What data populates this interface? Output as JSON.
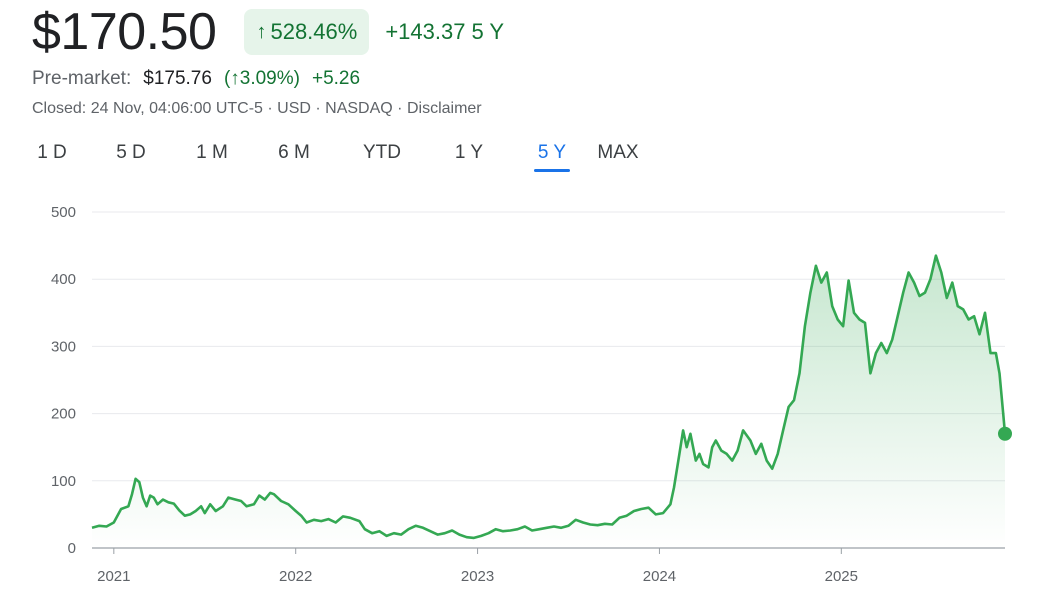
{
  "quote": {
    "price": "$170.50",
    "change_pct": "528.46%",
    "change_abs": "+143.37",
    "period": "5 Y",
    "premarket_label": "Pre-market:",
    "premarket_price": "$175.76",
    "premarket_pct": "(↑3.09%)",
    "premarket_abs": "+5.26",
    "closed": "Closed: 24 Nov, 04:06:00 UTC-5",
    "currency": "USD",
    "exchange": "NASDAQ",
    "disclaimer": "Disclaimer"
  },
  "tabs": [
    {
      "label": "1 D"
    },
    {
      "label": "5 D"
    },
    {
      "label": "1 M"
    },
    {
      "label": "6 M"
    },
    {
      "label": "YTD"
    },
    {
      "label": "1 Y"
    },
    {
      "label": "5 Y",
      "active": true
    },
    {
      "label": "MAX"
    }
  ],
  "colors": {
    "line": "#34a853",
    "positive": "#137333",
    "pill_bg": "#e6f4ea",
    "active_tab": "#1a73e8",
    "grid": "#e8eaed"
  },
  "chart_data": {
    "type": "area",
    "ylim": [
      0,
      500
    ],
    "yticks": [
      0,
      100,
      200,
      300,
      400,
      500
    ],
    "xticks": [
      "2021",
      "2022",
      "2023",
      "2024",
      "2025"
    ],
    "xlim": [
      2020.88,
      2025.9
    ],
    "grid": true,
    "series": [
      {
        "values": [
          [
            2020.88,
            30
          ],
          [
            2020.92,
            33
          ],
          [
            2020.96,
            32
          ],
          [
            2021.0,
            38
          ],
          [
            2021.04,
            58
          ],
          [
            2021.08,
            62
          ],
          [
            2021.1,
            80
          ],
          [
            2021.12,
            103
          ],
          [
            2021.14,
            98
          ],
          [
            2021.16,
            75
          ],
          [
            2021.18,
            62
          ],
          [
            2021.2,
            78
          ],
          [
            2021.22,
            75
          ],
          [
            2021.24,
            65
          ],
          [
            2021.27,
            72
          ],
          [
            2021.3,
            68
          ],
          [
            2021.33,
            66
          ],
          [
            2021.36,
            56
          ],
          [
            2021.39,
            48
          ],
          [
            2021.42,
            50
          ],
          [
            2021.45,
            55
          ],
          [
            2021.48,
            62
          ],
          [
            2021.5,
            52
          ],
          [
            2021.53,
            65
          ],
          [
            2021.56,
            55
          ],
          [
            2021.6,
            62
          ],
          [
            2021.63,
            75
          ],
          [
            2021.67,
            72
          ],
          [
            2021.7,
            70
          ],
          [
            2021.73,
            62
          ],
          [
            2021.77,
            65
          ],
          [
            2021.8,
            78
          ],
          [
            2021.83,
            72
          ],
          [
            2021.86,
            82
          ],
          [
            2021.88,
            80
          ],
          [
            2021.92,
            70
          ],
          [
            2021.96,
            65
          ],
          [
            2022.0,
            55
          ],
          [
            2022.03,
            48
          ],
          [
            2022.06,
            38
          ],
          [
            2022.1,
            42
          ],
          [
            2022.14,
            40
          ],
          [
            2022.18,
            43
          ],
          [
            2022.22,
            38
          ],
          [
            2022.26,
            47
          ],
          [
            2022.3,
            45
          ],
          [
            2022.35,
            40
          ],
          [
            2022.38,
            28
          ],
          [
            2022.42,
            22
          ],
          [
            2022.46,
            25
          ],
          [
            2022.5,
            18
          ],
          [
            2022.54,
            22
          ],
          [
            2022.58,
            20
          ],
          [
            2022.62,
            28
          ],
          [
            2022.66,
            33
          ],
          [
            2022.7,
            30
          ],
          [
            2022.74,
            25
          ],
          [
            2022.78,
            20
          ],
          [
            2022.82,
            22
          ],
          [
            2022.86,
            26
          ],
          [
            2022.9,
            20
          ],
          [
            2022.94,
            16
          ],
          [
            2022.98,
            15
          ],
          [
            2023.02,
            18
          ],
          [
            2023.06,
            22
          ],
          [
            2023.1,
            28
          ],
          [
            2023.14,
            25
          ],
          [
            2023.18,
            26
          ],
          [
            2023.22,
            28
          ],
          [
            2023.26,
            32
          ],
          [
            2023.3,
            26
          ],
          [
            2023.34,
            28
          ],
          [
            2023.38,
            30
          ],
          [
            2023.42,
            32
          ],
          [
            2023.46,
            30
          ],
          [
            2023.5,
            33
          ],
          [
            2023.54,
            42
          ],
          [
            2023.58,
            38
          ],
          [
            2023.62,
            35
          ],
          [
            2023.66,
            34
          ],
          [
            2023.7,
            36
          ],
          [
            2023.74,
            35
          ],
          [
            2023.78,
            45
          ],
          [
            2023.82,
            48
          ],
          [
            2023.86,
            55
          ],
          [
            2023.9,
            58
          ],
          [
            2023.94,
            60
          ],
          [
            2023.98,
            50
          ],
          [
            2024.02,
            52
          ],
          [
            2024.06,
            65
          ],
          [
            2024.08,
            90
          ],
          [
            2024.11,
            140
          ],
          [
            2024.13,
            175
          ],
          [
            2024.15,
            150
          ],
          [
            2024.17,
            170
          ],
          [
            2024.2,
            130
          ],
          [
            2024.22,
            140
          ],
          [
            2024.24,
            125
          ],
          [
            2024.27,
            120
          ],
          [
            2024.29,
            150
          ],
          [
            2024.31,
            160
          ],
          [
            2024.34,
            145
          ],
          [
            2024.37,
            140
          ],
          [
            2024.4,
            130
          ],
          [
            2024.43,
            145
          ],
          [
            2024.46,
            175
          ],
          [
            2024.5,
            160
          ],
          [
            2024.53,
            140
          ],
          [
            2024.56,
            155
          ],
          [
            2024.59,
            130
          ],
          [
            2024.62,
            118
          ],
          [
            2024.65,
            140
          ],
          [
            2024.68,
            175
          ],
          [
            2024.71,
            210
          ],
          [
            2024.74,
            220
          ],
          [
            2024.77,
            260
          ],
          [
            2024.8,
            330
          ],
          [
            2024.83,
            380
          ],
          [
            2024.86,
            420
          ],
          [
            2024.89,
            395
          ],
          [
            2024.92,
            410
          ],
          [
            2024.95,
            360
          ],
          [
            2024.98,
            340
          ],
          [
            2025.01,
            330
          ],
          [
            2025.04,
            398
          ],
          [
            2025.07,
            350
          ],
          [
            2025.1,
            340
          ],
          [
            2025.13,
            335
          ],
          [
            2025.16,
            260
          ],
          [
            2025.19,
            290
          ],
          [
            2025.22,
            305
          ],
          [
            2025.25,
            290
          ],
          [
            2025.28,
            310
          ],
          [
            2025.31,
            345
          ],
          [
            2025.34,
            380
          ],
          [
            2025.37,
            410
          ],
          [
            2025.4,
            395
          ],
          [
            2025.43,
            375
          ],
          [
            2025.46,
            380
          ],
          [
            2025.49,
            400
          ],
          [
            2025.52,
            435
          ],
          [
            2025.55,
            410
          ],
          [
            2025.58,
            372
          ],
          [
            2025.61,
            395
          ],
          [
            2025.64,
            360
          ],
          [
            2025.67,
            355
          ],
          [
            2025.7,
            340
          ],
          [
            2025.73,
            345
          ],
          [
            2025.76,
            318
          ],
          [
            2025.79,
            350
          ],
          [
            2025.82,
            290
          ],
          [
            2025.85,
            290
          ],
          [
            2025.87,
            260
          ],
          [
            2025.89,
            200
          ],
          [
            2025.9,
            170
          ]
        ]
      }
    ]
  }
}
